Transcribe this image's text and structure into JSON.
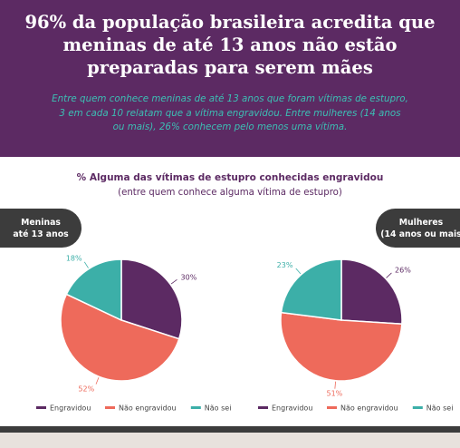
{
  "header": {
    "title_lines": [
      "96% da população brasileira acredita que",
      "meninas de até 13 anos não estão",
      "preparadas para serem mães"
    ],
    "subtitle_lines": [
      "Entre quem conhece meninas de até 13 anos que foram vítimas de estupro,",
      "3 em cada 10 relatam que a vítima engravidou. Entre mulheres (14 anos",
      "ou mais), 26% conhecem pelo menos uma vítima."
    ]
  },
  "tags": {
    "left_lines": [
      "Meninas",
      "até 13 anos"
    ],
    "right_lines": [
      "Mulheres",
      "(14 anos ou mais"
    ]
  },
  "chart_data": {
    "type": "pie",
    "title": "% Alguma das vítimas de estupro conhecidas engravidou",
    "subtitle": "(entre quem conhece alguma vítima de estupro)",
    "categories": [
      "Engravidou",
      "Não engravidou",
      "Não sei"
    ],
    "colors": [
      "#5c2a63",
      "#ee6a5b",
      "#3cafa8"
    ],
    "pies": [
      {
        "name": "Meninas até 13 anos",
        "values": [
          30,
          52,
          18
        ],
        "labels": [
          "30%",
          "52%",
          "18%"
        ]
      },
      {
        "name": "Mulheres (14 anos ou mais",
        "values": [
          26,
          51,
          23
        ],
        "labels": [
          "26%",
          "51%",
          "23%"
        ]
      }
    ],
    "legend": {
      "labels": [
        "Engravidou",
        "Não engravidou",
        "Não sei"
      ],
      "placement": "bottom"
    }
  }
}
